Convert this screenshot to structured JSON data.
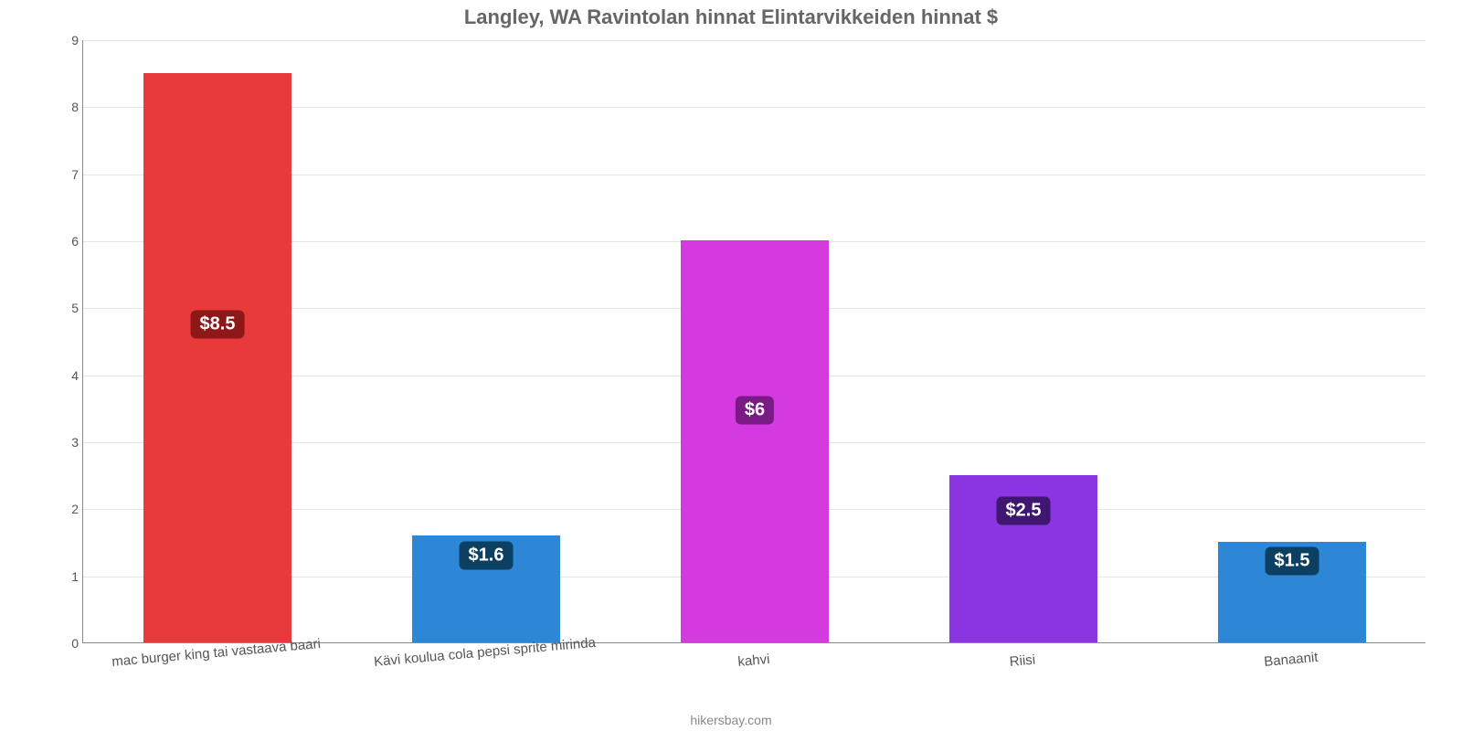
{
  "chart": {
    "type": "bar",
    "title": "Langley, WA Ravintolan hinnat Elintarvikkeiden hinnat $",
    "title_fontsize": 22,
    "title_color": "#666666",
    "credit": "hikersbay.com",
    "credit_fontsize": 14,
    "credit_color": "#888888",
    "background_color": "#ffffff",
    "grid_color": "#e6e6e6",
    "axis_color": "#888888",
    "tick_fontcolor": "#555555",
    "tick_fontsize": 14,
    "xlabel_fontsize": 15,
    "xlabel_color": "#555555",
    "xlabel_rotation_deg": -5,
    "ylim": [
      0,
      9
    ],
    "ytick_step": 1,
    "bar_width_ratio": 0.55,
    "categories": [
      "mac burger king tai vastaava baari",
      "Kävi koulua cola pepsi sprite mirinda",
      "kahvi",
      "Riisi",
      "Banaanit"
    ],
    "values": [
      8.5,
      1.6,
      6.0,
      2.5,
      1.5
    ],
    "value_labels": [
      "$8.5",
      "$1.6",
      "$6",
      "$2.5",
      "$1.5"
    ],
    "bar_colors": [
      "#e83a3a",
      "#2d86d6",
      "#d43ae0",
      "#8a34e2",
      "#2d86d6"
    ],
    "label_bg_colors": [
      "#8e1717",
      "#0b4063",
      "#7a1a84",
      "#3f1670",
      "#0b4063"
    ],
    "label_fontsize": 20,
    "label_vertical_pos": [
      0.56,
      0.82,
      0.58,
      0.79,
      0.82
    ]
  }
}
